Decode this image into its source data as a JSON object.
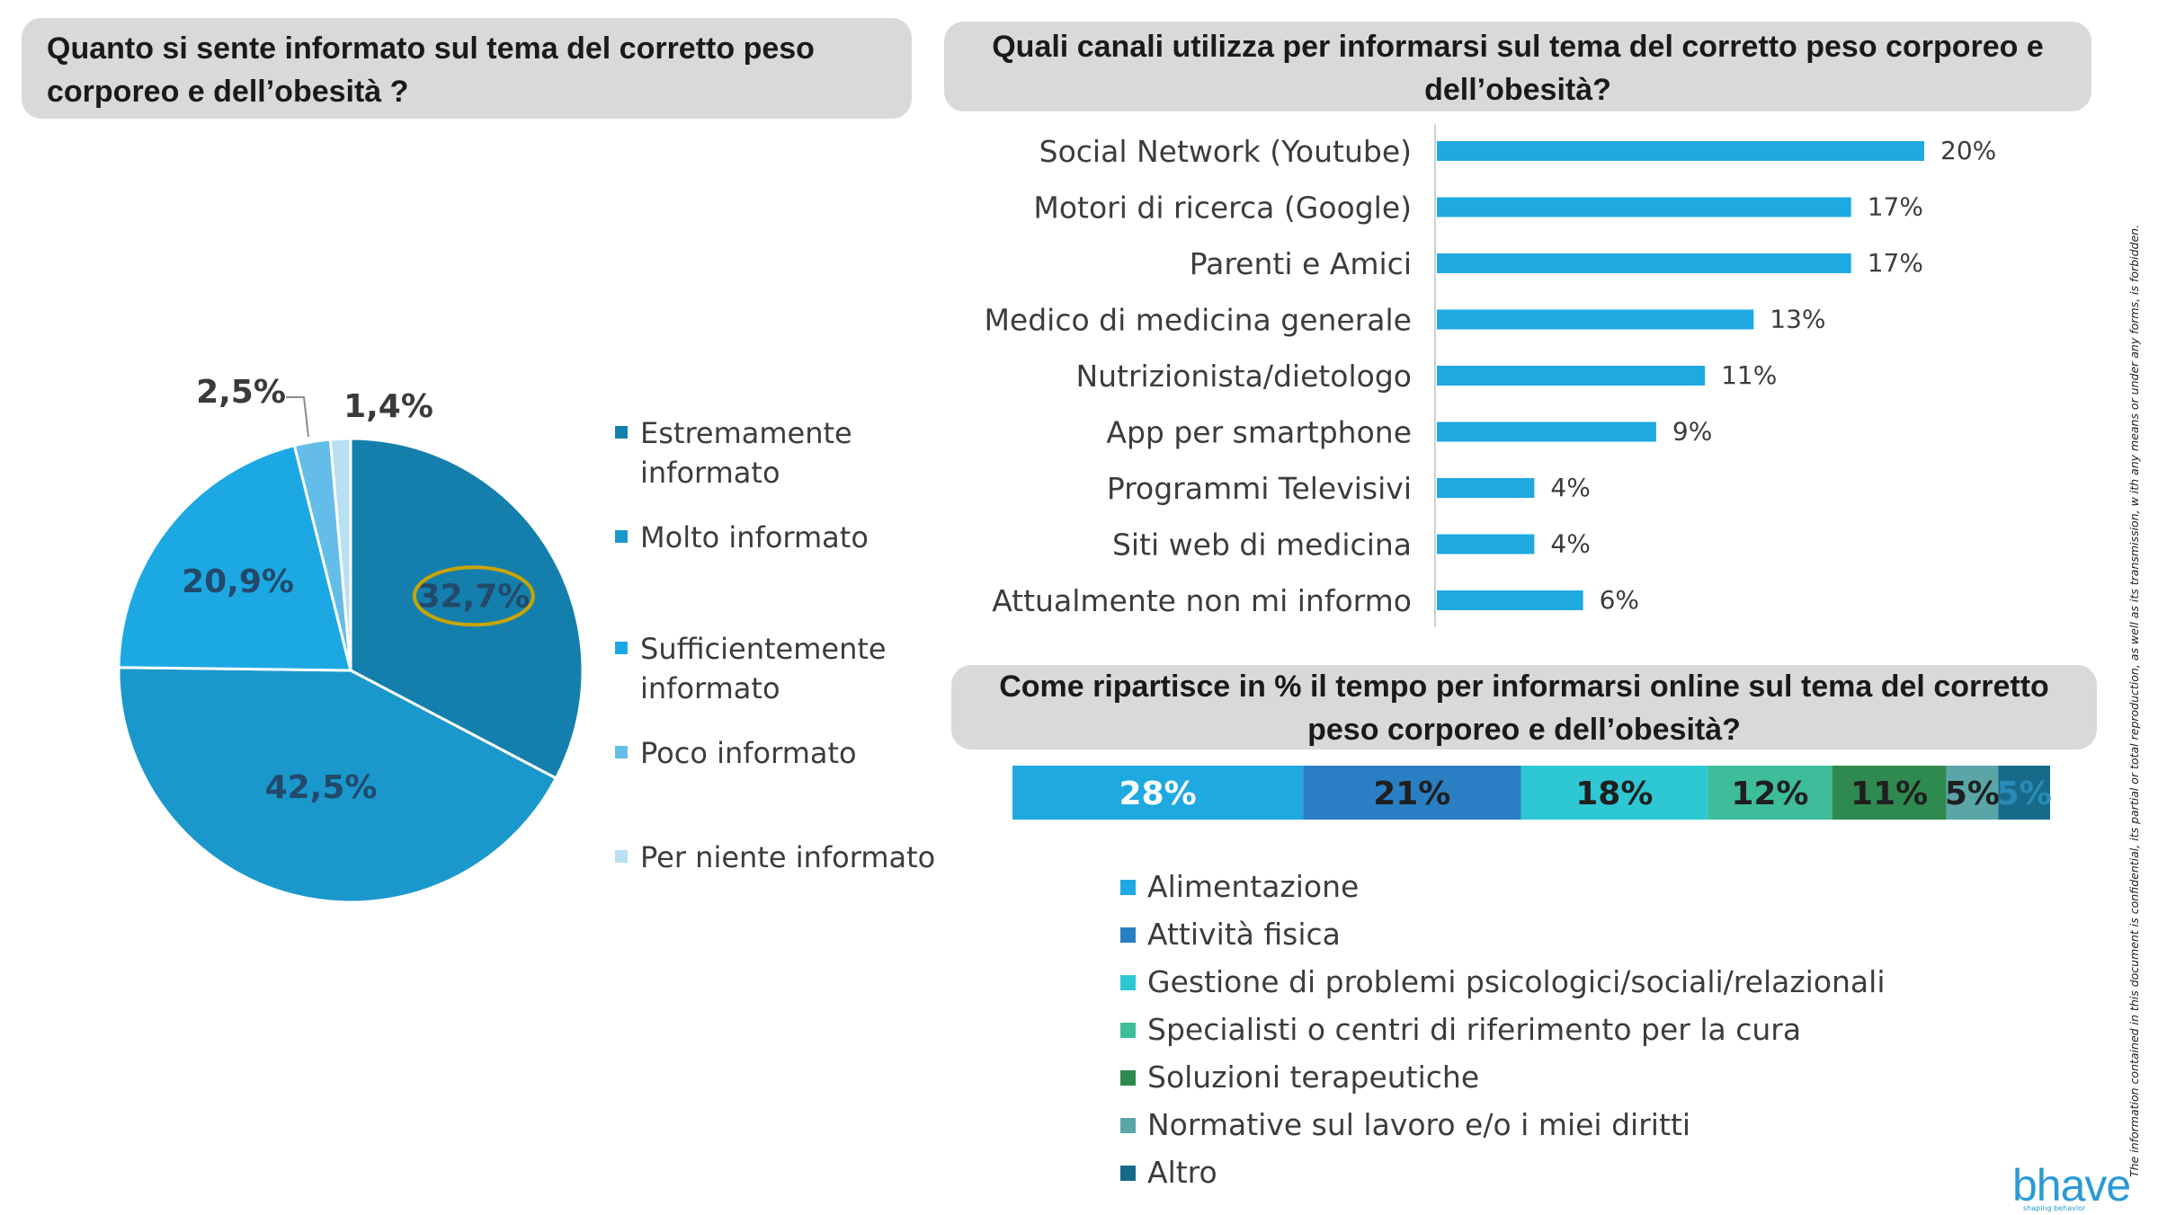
{
  "pie_panel": {
    "title": "Quanto si sente informato sul tema  del corretto peso corporeo  e dell’obesità ?"
  },
  "channels_panel": {
    "title": "Quali canali utilizza per informarsi sul tema del corretto peso corporeo e dell’obesità?"
  },
  "time_panel": {
    "title": "Come ripartisce in % il tempo per informarsi online   sul tema del corretto peso corporeo e dell’obesità?"
  },
  "disclaimer": "The information contained in this document is confidential, its partial or total reproduction, as well as its transmission, w     ith  any means or under any forms, is forbidden.",
  "logo": {
    "name": "bhave",
    "tagline": "shaping behavior"
  },
  "colors": {
    "title_bg": "#d9d9d9",
    "bar_blue": "#1fa9e1",
    "highlight_ring": "#c9a400"
  },
  "chart_data": [
    {
      "type": "pie",
      "title": "Quanto si sente informato sul tema  del corretto peso corporeo  e dell’obesità ?",
      "categories": [
        "Estremamente informato",
        "Molto informato",
        "Sufficientemente informato",
        "Poco informato",
        "Per niente informato"
      ],
      "values": [
        32.7,
        42.5,
        20.9,
        2.5,
        1.4
      ],
      "labels": [
        "32,7%",
        "42,5%",
        "20,9%",
        "2,5%",
        "1,4%"
      ],
      "colors": [
        "#147fad",
        "#1a98cc",
        "#1ca9e3",
        "#63bde8",
        "#b9dff2"
      ],
      "highlighted": "32,7%",
      "legend_position": "right"
    },
    {
      "type": "bar",
      "orientation": "horizontal",
      "title": "Quali canali utilizza per informarsi sul tema del corretto peso corporeo e dell’obesità?",
      "categories": [
        "Social Network (Youtube)",
        "Motori di ricerca (Google)",
        "Parenti e Amici",
        "Medico di medicina generale",
        "Nutrizionista/dietologo",
        "App per smartphone",
        "Programmi Televisivi",
        "Siti web di medicina",
        "Attualmente non mi informo"
      ],
      "values": [
        20,
        17,
        17,
        13,
        11,
        9,
        4,
        4,
        6
      ],
      "labels": [
        "20%",
        "17%",
        "17%",
        "13%",
        "11%",
        "9%",
        "4%",
        "4%",
        "6%"
      ],
      "xlim": [
        0,
        20
      ]
    },
    {
      "type": "bar",
      "orientation": "stacked-horizontal",
      "title": "Come ripartisce in % il tempo per informarsi online   sul tema del corretto peso corporeo e dell’obesità?",
      "categories": [
        "Alimentazione",
        "Attività fisica",
        "Gestione di problemi psicologici/sociali/relazionali",
        "Specialisti o centri di riferimento per la cura",
        "Soluzioni terapeutiche",
        "Normative sul lavoro e/o i miei diritti",
        "Altro"
      ],
      "values": [
        28,
        21,
        18,
        12,
        11,
        5,
        5
      ],
      "labels": [
        "28%",
        "21%",
        "18%",
        "12%",
        "11%",
        "5%",
        "5%"
      ],
      "colors": [
        "#1fa9e1",
        "#2a7fc4",
        "#2ec8d4",
        "#3dbd9a",
        "#2f8a4f",
        "#5aa5a8",
        "#176a8a"
      ],
      "label_colors": [
        "#ffffff",
        "#1f1f1f",
        "#1f1f1f",
        "#1f1f1f",
        "#1f1f1f",
        "#1f1f1f",
        "#2a8bb8"
      ],
      "legend_position": "bottom"
    }
  ]
}
